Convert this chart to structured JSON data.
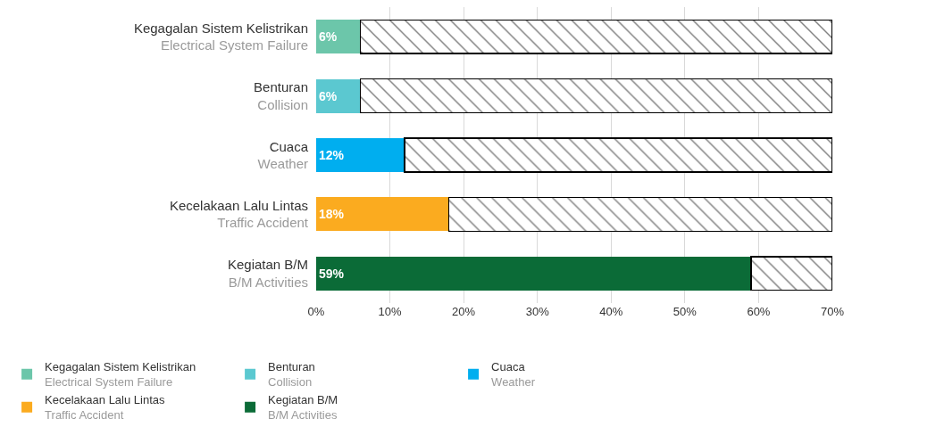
{
  "chart_data": {
    "type": "bar",
    "orientation": "horizontal",
    "stacked": true,
    "categories": [
      "Kegagalan Sistem Kelistrikan\nElectrical System Failure",
      "Benturan\nCollision",
      "Cuaca\nWeather",
      "Kecelakaan Lalu Lintas\nTraffic Accident",
      "Kegiatan B/M\nB/M Activities"
    ],
    "series": [
      {
        "name": "Kegagalan Sistem Kelistrikan\nElectrical System Failure",
        "color": "#6cc6aa",
        "values": [
          6,
          null,
          null,
          null,
          null
        ],
        "value_labels": [
          "6%",
          null,
          null,
          null,
          null
        ]
      },
      {
        "name": "Benturan\nCollision",
        "color": "#5bc8d0",
        "values": [
          null,
          6,
          null,
          null,
          null
        ],
        "value_labels": [
          null,
          "6%",
          null,
          null,
          null
        ]
      },
      {
        "name": "Cuaca\nWeather",
        "color": "#00aeef",
        "values": [
          null,
          null,
          12,
          null,
          null
        ],
        "value_labels": [
          null,
          null,
          "12%",
          null,
          null
        ]
      },
      {
        "name": "Kecelakaan Lalu Lintas\nTraffic Accident",
        "color": "#fbab1f",
        "values": [
          null,
          null,
          null,
          18,
          null
        ],
        "value_labels": [
          null,
          null,
          null,
          "18%",
          null
        ]
      },
      {
        "name": "Kegiatan B/M\nB/M Activities",
        "color": "#0b6b37",
        "values": [
          null,
          null,
          null,
          null,
          59
        ],
        "value_labels": [
          null,
          null,
          null,
          null,
          "59%"
        ]
      },
      {
        "values": [
          64,
          64,
          58,
          52,
          11
        ],
        "color": "#000000"
      }
    ],
    "xlim": [
      0,
      70
    ],
    "xticks": [
      {
        "value": 0,
        "label": "0%"
      },
      {
        "value": 10,
        "label": "10%"
      },
      {
        "value": 20,
        "label": "20%"
      },
      {
        "value": 30,
        "label": "30%"
      },
      {
        "value": 40,
        "label": "40%"
      },
      {
        "value": 50,
        "label": "50%"
      },
      {
        "value": 60,
        "label": "60%"
      },
      {
        "value": 70,
        "label": "70%"
      }
    ],
    "grid": "x",
    "legend": "bottom"
  }
}
